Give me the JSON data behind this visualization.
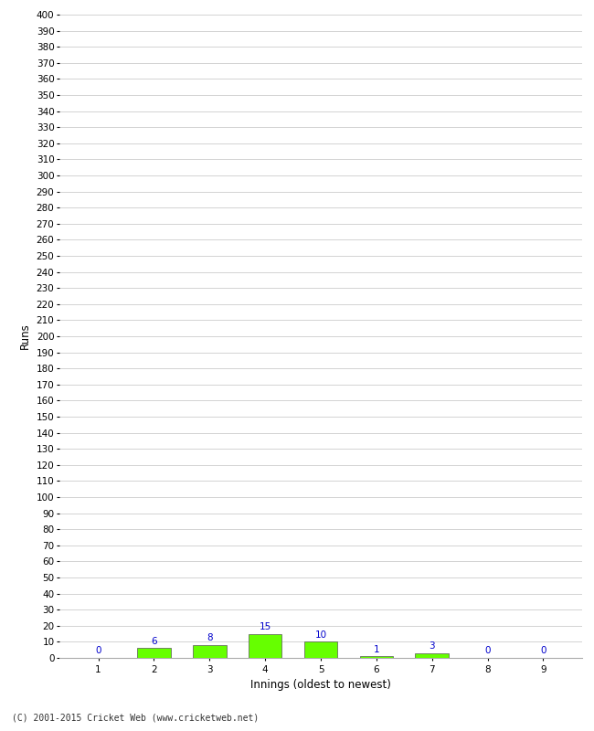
{
  "categories": [
    "1",
    "2",
    "3",
    "4",
    "5",
    "6",
    "7",
    "8",
    "9"
  ],
  "values": [
    0,
    6,
    8,
    15,
    10,
    1,
    3,
    0,
    0
  ],
  "bar_color": "#66ff00",
  "bar_edge_color": "#555555",
  "label_color": "#0000cc",
  "xlabel": "Innings (oldest to newest)",
  "ylabel": "Runs",
  "ylim": [
    0,
    400
  ],
  "footer": "(C) 2001-2015 Cricket Web (www.cricketweb.net)",
  "background_color": "#ffffff",
  "grid_color": "#cccccc",
  "label_fontsize": 7.5,
  "axis_tick_fontsize": 7.5,
  "axis_label_fontsize": 8.5
}
